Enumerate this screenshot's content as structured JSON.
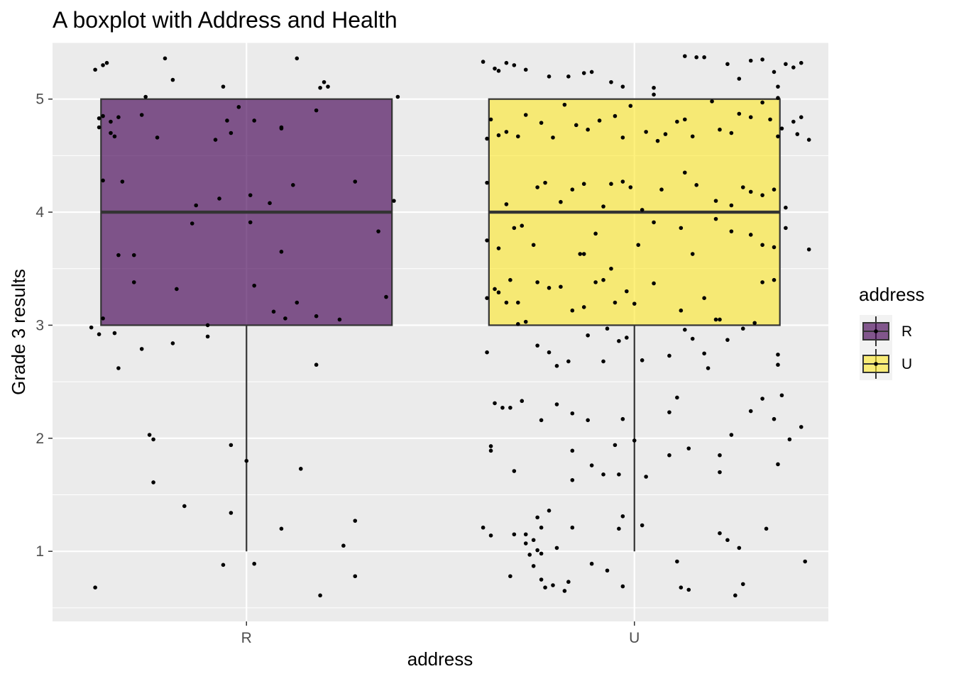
{
  "chart_data": {
    "type": "boxplot",
    "title": "A boxplot with Address and Health",
    "xlabel": "address",
    "ylabel": "Grade 3 results",
    "ylim": [
      0.38,
      5.5
    ],
    "yticks": [
      1,
      2,
      3,
      4,
      5
    ],
    "categories": [
      "R",
      "U"
    ],
    "grid": true,
    "legend": {
      "title": "address",
      "placement": "right",
      "entries": [
        {
          "label": "R",
          "color": "#440154"
        },
        {
          "label": "U",
          "color": "#FDE725"
        }
      ]
    },
    "boxes": [
      {
        "category": "R",
        "q1": 3,
        "median": 4,
        "q3": 5,
        "whisker_low": 1,
        "whisker_high": 5,
        "fill": "#440154",
        "alpha": 0.65
      },
      {
        "category": "U",
        "q1": 3,
        "median": 4,
        "q3": 5,
        "whisker_low": 1,
        "whisker_high": 5,
        "fill": "#FDE725",
        "alpha": 0.6
      }
    ],
    "jitter_points": {
      "R": [
        [
          -0.39,
          5.26
        ],
        [
          -0.37,
          5.3
        ],
        [
          -0.36,
          5.32
        ],
        [
          -0.21,
          5.36
        ],
        [
          -0.19,
          5.17
        ],
        [
          -0.06,
          5.11
        ],
        [
          0.19,
          5.1
        ],
        [
          0.13,
          5.36
        ],
        [
          0.2,
          5.15
        ],
        [
          0.21,
          5.11
        ],
        [
          0.39,
          5.02
        ],
        [
          -0.38,
          4.83
        ],
        [
          -0.37,
          4.85
        ],
        [
          -0.38,
          4.75
        ],
        [
          -0.35,
          4.8
        ],
        [
          -0.33,
          4.84
        ],
        [
          -0.35,
          4.7
        ],
        [
          -0.34,
          4.67
        ],
        [
          -0.26,
          5.02
        ],
        [
          -0.27,
          4.86
        ],
        [
          -0.23,
          4.66
        ],
        [
          -0.08,
          4.64
        ],
        [
          -0.05,
          4.81
        ],
        [
          -0.04,
          4.7
        ],
        [
          -0.02,
          4.93
        ],
        [
          0.02,
          4.81
        ],
        [
          0.09,
          4.75
        ],
        [
          0.09,
          4.74
        ],
        [
          0.18,
          4.9
        ],
        [
          -0.37,
          4.28
        ],
        [
          -0.32,
          4.27
        ],
        [
          -0.13,
          4.06
        ],
        [
          -0.07,
          4.12
        ],
        [
          0.01,
          4.15
        ],
        [
          0.06,
          4.08
        ],
        [
          0.12,
          4.24
        ],
        [
          0.28,
          4.27
        ],
        [
          0.38,
          4.1
        ],
        [
          -0.14,
          3.9
        ],
        [
          0.01,
          3.91
        ],
        [
          0.34,
          3.83
        ],
        [
          0.09,
          3.65
        ],
        [
          -0.33,
          3.62
        ],
        [
          -0.29,
          3.62
        ],
        [
          -0.29,
          3.38
        ],
        [
          -0.18,
          3.32
        ],
        [
          0.02,
          3.35
        ],
        [
          0.36,
          3.25
        ],
        [
          0.07,
          3.12
        ],
        [
          0.1,
          3.06
        ],
        [
          0.13,
          3.2
        ],
        [
          0.18,
          3.08
        ],
        [
          0.24,
          3.05
        ],
        [
          -0.37,
          3.06
        ],
        [
          -0.4,
          2.98
        ],
        [
          -0.38,
          2.92
        ],
        [
          -0.34,
          2.93
        ],
        [
          -0.33,
          2.62
        ],
        [
          -0.27,
          2.79
        ],
        [
          -0.19,
          2.84
        ],
        [
          -0.1,
          3.0
        ],
        [
          -0.1,
          2.9
        ],
        [
          0.18,
          2.65
        ],
        [
          -0.25,
          2.03
        ],
        [
          -0.24,
          1.99
        ],
        [
          -0.04,
          1.94
        ],
        [
          0.0,
          1.8
        ],
        [
          0.14,
          1.73
        ],
        [
          -0.24,
          1.61
        ],
        [
          -0.16,
          1.4
        ],
        [
          -0.04,
          1.34
        ],
        [
          0.09,
          1.2
        ],
        [
          0.28,
          1.27
        ],
        [
          0.25,
          1.05
        ],
        [
          -0.06,
          0.88
        ],
        [
          0.02,
          0.89
        ],
        [
          0.28,
          0.78
        ],
        [
          -0.39,
          0.68
        ],
        [
          0.19,
          0.61
        ]
      ],
      "U": [
        [
          -0.39,
          5.33
        ],
        [
          -0.36,
          5.27
        ],
        [
          -0.35,
          5.25
        ],
        [
          -0.33,
          5.32
        ],
        [
          -0.31,
          5.3
        ],
        [
          -0.28,
          5.26
        ],
        [
          -0.22,
          5.2
        ],
        [
          -0.17,
          5.2
        ],
        [
          -0.13,
          5.23
        ],
        [
          -0.11,
          5.24
        ],
        [
          -0.06,
          5.15
        ],
        [
          -0.03,
          5.11
        ],
        [
          0.05,
          5.1
        ],
        [
          0.05,
          5.04
        ],
        [
          0.13,
          5.38
        ],
        [
          0.16,
          5.37
        ],
        [
          0.18,
          5.37
        ],
        [
          0.24,
          5.31
        ],
        [
          0.27,
          5.18
        ],
        [
          0.3,
          5.34
        ],
        [
          0.33,
          5.35
        ],
        [
          0.36,
          5.24
        ],
        [
          0.39,
          5.31
        ],
        [
          0.41,
          5.28
        ],
        [
          0.37,
          5.11
        ],
        [
          0.43,
          5.32
        ],
        [
          0.37,
          5.01
        ],
        [
          -0.38,
          4.65
        ],
        [
          -0.37,
          4.82
        ],
        [
          -0.35,
          4.68
        ],
        [
          -0.33,
          4.71
        ],
        [
          -0.3,
          4.67
        ],
        [
          -0.28,
          4.86
        ],
        [
          -0.24,
          4.79
        ],
        [
          -0.21,
          4.66
        ],
        [
          -0.18,
          4.95
        ],
        [
          -0.15,
          4.77
        ],
        [
          -0.12,
          4.73
        ],
        [
          -0.09,
          4.81
        ],
        [
          -0.05,
          4.85
        ],
        [
          -0.03,
          4.66
        ],
        [
          -0.01,
          4.94
        ],
        [
          0.03,
          4.71
        ],
        [
          0.06,
          4.63
        ],
        [
          0.08,
          4.69
        ],
        [
          0.11,
          4.8
        ],
        [
          0.13,
          4.82
        ],
        [
          0.15,
          4.67
        ],
        [
          0.2,
          4.98
        ],
        [
          0.22,
          4.73
        ],
        [
          0.25,
          4.7
        ],
        [
          0.27,
          4.87
        ],
        [
          0.3,
          4.84
        ],
        [
          0.33,
          4.97
        ],
        [
          0.35,
          4.82
        ],
        [
          0.37,
          4.67
        ],
        [
          0.38,
          4.74
        ],
        [
          0.41,
          4.8
        ],
        [
          0.42,
          4.69
        ],
        [
          0.43,
          4.84
        ],
        [
          0.45,
          4.64
        ],
        [
          -0.38,
          4.26
        ],
        [
          -0.33,
          4.07
        ],
        [
          -0.25,
          4.22
        ],
        [
          -0.23,
          4.26
        ],
        [
          -0.19,
          4.09
        ],
        [
          -0.16,
          4.2
        ],
        [
          -0.13,
          4.25
        ],
        [
          -0.08,
          4.05
        ],
        [
          -0.06,
          4.25
        ],
        [
          -0.03,
          4.27
        ],
        [
          -0.01,
          4.22
        ],
        [
          0.02,
          4.02
        ],
        [
          0.07,
          4.2
        ],
        [
          0.13,
          4.35
        ],
        [
          0.16,
          4.24
        ],
        [
          0.21,
          4.1
        ],
        [
          0.25,
          4.06
        ],
        [
          0.28,
          4.22
        ],
        [
          0.3,
          4.18
        ],
        [
          0.33,
          4.15
        ],
        [
          0.36,
          4.2
        ],
        [
          0.39,
          4.04
        ],
        [
          -0.38,
          3.75
        ],
        [
          -0.35,
          3.68
        ],
        [
          -0.31,
          3.86
        ],
        [
          -0.29,
          3.88
        ],
        [
          -0.26,
          3.71
        ],
        [
          -0.14,
          3.63
        ],
        [
          -0.13,
          3.63
        ],
        [
          -0.1,
          3.81
        ],
        [
          -0.06,
          3.5
        ],
        [
          0.01,
          3.71
        ],
        [
          0.05,
          3.91
        ],
        [
          0.12,
          3.86
        ],
        [
          0.15,
          3.63
        ],
        [
          0.21,
          3.94
        ],
        [
          0.25,
          3.83
        ],
        [
          0.3,
          3.8
        ],
        [
          0.33,
          3.71
        ],
        [
          0.36,
          3.69
        ],
        [
          0.39,
          3.86
        ],
        [
          0.45,
          3.67
        ],
        [
          -0.38,
          3.24
        ],
        [
          -0.36,
          3.32
        ],
        [
          -0.35,
          3.29
        ],
        [
          -0.33,
          3.2
        ],
        [
          -0.32,
          3.4
        ],
        [
          -0.3,
          3.2
        ],
        [
          -0.25,
          3.38
        ],
        [
          -0.22,
          3.33
        ],
        [
          -0.19,
          3.34
        ],
        [
          -0.16,
          3.13
        ],
        [
          -0.13,
          3.16
        ],
        [
          -0.1,
          3.38
        ],
        [
          -0.08,
          3.4
        ],
        [
          -0.05,
          3.2
        ],
        [
          -0.02,
          3.3
        ],
        [
          0.0,
          3.19
        ],
        [
          0.05,
          3.37
        ],
        [
          0.12,
          3.13
        ],
        [
          0.18,
          3.24
        ],
        [
          0.21,
          3.05
        ],
        [
          0.22,
          3.05
        ],
        [
          0.33,
          3.38
        ],
        [
          0.36,
          3.4
        ],
        [
          -0.3,
          3.01
        ],
        [
          -0.28,
          3.03
        ],
        [
          -0.25,
          2.82
        ],
        [
          -0.22,
          2.76
        ],
        [
          -0.2,
          2.64
        ],
        [
          -0.17,
          2.68
        ],
        [
          -0.12,
          2.91
        ],
        [
          -0.08,
          2.68
        ],
        [
          -0.07,
          2.97
        ],
        [
          -0.04,
          2.86
        ],
        [
          -0.02,
          2.89
        ],
        [
          0.02,
          2.69
        ],
        [
          0.09,
          2.73
        ],
        [
          0.13,
          2.96
        ],
        [
          0.15,
          2.88
        ],
        [
          0.18,
          2.75
        ],
        [
          0.19,
          2.62
        ],
        [
          0.24,
          2.87
        ],
        [
          0.28,
          2.97
        ],
        [
          0.31,
          3.02
        ],
        [
          0.37,
          2.74
        ],
        [
          0.37,
          2.65
        ],
        [
          -0.38,
          2.76
        ],
        [
          -0.36,
          2.31
        ],
        [
          -0.34,
          2.27
        ],
        [
          -0.32,
          2.27
        ],
        [
          -0.29,
          2.33
        ],
        [
          -0.24,
          2.16
        ],
        [
          -0.2,
          2.3
        ],
        [
          -0.16,
          2.22
        ],
        [
          -0.12,
          2.16
        ],
        [
          -0.03,
          2.17
        ],
        [
          0.09,
          2.23
        ],
        [
          0.11,
          2.36
        ],
        [
          0.25,
          2.03
        ],
        [
          0.3,
          2.24
        ],
        [
          0.33,
          2.35
        ],
        [
          0.36,
          2.17
        ],
        [
          0.38,
          2.38
        ],
        [
          0.43,
          2.1
        ],
        [
          -0.37,
          1.93
        ],
        [
          -0.37,
          1.89
        ],
        [
          -0.31,
          1.71
        ],
        [
          -0.16,
          1.89
        ],
        [
          -0.11,
          1.76
        ],
        [
          -0.08,
          1.68
        ],
        [
          -0.05,
          1.94
        ],
        [
          -0.04,
          1.68
        ],
        [
          0.0,
          1.98
        ],
        [
          0.03,
          1.66
        ],
        [
          0.09,
          1.85
        ],
        [
          0.14,
          1.91
        ],
        [
          0.22,
          1.85
        ],
        [
          0.22,
          1.7
        ],
        [
          0.4,
          1.99
        ],
        [
          0.37,
          1.77
        ],
        [
          -0.16,
          1.63
        ],
        [
          -0.39,
          1.21
        ],
        [
          -0.37,
          1.14
        ],
        [
          -0.31,
          1.15
        ],
        [
          -0.28,
          1.15
        ],
        [
          -0.24,
          1.21
        ],
        [
          -0.25,
          1.3
        ],
        [
          -0.26,
          1.1
        ],
        [
          -0.22,
          1.36
        ],
        [
          -0.16,
          1.21
        ],
        [
          -0.03,
          1.31
        ],
        [
          -0.04,
          1.2
        ],
        [
          0.02,
          1.23
        ],
        [
          0.22,
          1.16
        ],
        [
          0.24,
          1.1
        ],
        [
          0.27,
          1.03
        ],
        [
          0.34,
          1.2
        ],
        [
          -0.28,
          1.07
        ],
        [
          -0.27,
          0.97
        ],
        [
          -0.25,
          1.01
        ],
        [
          -0.24,
          0.98
        ],
        [
          -0.2,
          1.03
        ],
        [
          -0.26,
          0.87
        ],
        [
          -0.24,
          0.75
        ],
        [
          -0.23,
          0.68
        ],
        [
          -0.21,
          0.7
        ],
        [
          -0.18,
          0.65
        ],
        [
          -0.17,
          0.73
        ],
        [
          -0.11,
          0.89
        ],
        [
          -0.07,
          0.83
        ],
        [
          -0.03,
          0.69
        ],
        [
          0.11,
          0.91
        ],
        [
          0.12,
          0.68
        ],
        [
          0.14,
          0.66
        ],
        [
          0.26,
          0.61
        ],
        [
          0.28,
          0.71
        ],
        [
          0.44,
          0.91
        ],
        [
          -0.32,
          0.78
        ]
      ]
    }
  }
}
